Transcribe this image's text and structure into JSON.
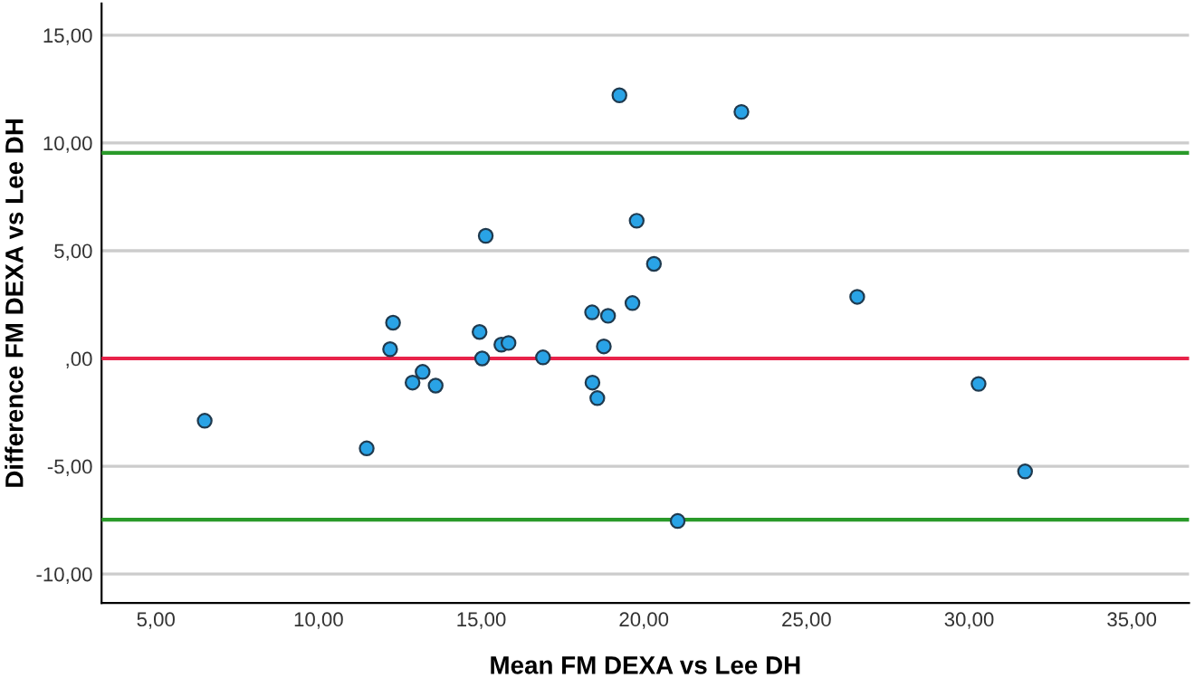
{
  "chart_data": {
    "type": "scatter",
    "xlabel": "Mean FM DEXA vs Lee DH",
    "ylabel": "Difference FM DEXA vs Lee DH",
    "series": [
      {
        "color": "#29a3e6",
        "x": [
          6.5,
          11.48,
          12.2,
          12.29,
          12.89,
          13.2,
          13.6,
          14.95,
          15.03,
          15.14,
          15.62,
          15.84,
          16.9,
          18.41,
          18.42,
          18.57,
          18.77,
          18.9,
          19.25,
          19.65,
          19.78,
          20.31,
          21.04,
          23.0,
          26.56,
          30.29,
          31.72
        ],
        "values": [
          -2.89,
          -4.17,
          0.43,
          1.66,
          -1.12,
          -0.62,
          -1.26,
          1.23,
          0.0,
          5.69,
          0.64,
          0.72,
          0.05,
          2.14,
          -1.12,
          -1.84,
          0.56,
          1.98,
          12.21,
          2.57,
          6.39,
          4.39,
          -7.54,
          11.44,
          2.86,
          -1.18,
          -5.24
        ]
      }
    ],
    "marker": "circle",
    "xlim": [
      3.33,
      36.76
    ],
    "ylim": [
      -11.34,
      16.47
    ],
    "xticks": [
      {
        "value": 5,
        "label": "5,00"
      },
      {
        "value": 10,
        "label": "10,00"
      },
      {
        "value": 15,
        "label": "15,00"
      },
      {
        "value": 20,
        "label": "20,00"
      },
      {
        "value": 25,
        "label": "25,00"
      },
      {
        "value": 30,
        "label": "30,00"
      },
      {
        "value": 35,
        "label": "35,00"
      }
    ],
    "yticks": [
      {
        "value": -10,
        "label": "-10,00"
      },
      {
        "value": -5,
        "label": "-5,00"
      },
      {
        "value": 0,
        "label": ",00"
      },
      {
        "value": 5,
        "label": "5,00"
      },
      {
        "value": 10,
        "label": "10,00"
      },
      {
        "value": 15,
        "label": "15,00"
      }
    ],
    "grid": "y",
    "ref_lines": [
      {
        "axis": "y",
        "value": 0,
        "color": "#e8234a"
      },
      {
        "axis": "y",
        "value": 9.54,
        "color": "#2a9a2a"
      },
      {
        "axis": "y",
        "value": -7.48,
        "color": "#2a9a2a"
      }
    ]
  }
}
